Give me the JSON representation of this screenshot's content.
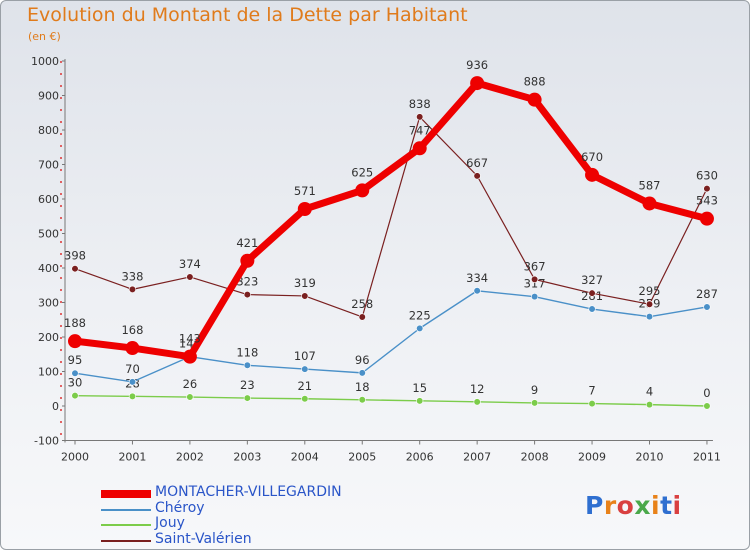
{
  "header": {
    "title": "Evolution du Montant de la Dette par Habitant",
    "subtitle": "(en €)"
  },
  "logo": {
    "text": "Proxiti",
    "letter_colors": [
      "#2f6fd0",
      "#e8821a",
      "#d94040",
      "#4aa84a",
      "#e8821a",
      "#2f6fd0",
      "#d94040"
    ]
  },
  "chart_data": {
    "type": "line",
    "title": "Evolution du Montant de la Dette par Habitant",
    "subtitle": "(en €)",
    "x": [
      "2000",
      "2001",
      "2002",
      "2003",
      "2004",
      "2005",
      "2006",
      "2007",
      "2008",
      "2009",
      "2010",
      "2011"
    ],
    "ylim": [
      -100,
      1000
    ],
    "yticks": [
      -100,
      0,
      100,
      200,
      300,
      400,
      500,
      600,
      700,
      800,
      900,
      1000
    ],
    "grid": false,
    "legend": "bottom-left",
    "series": [
      {
        "name": "MONTACHER-VILLEGARDIN",
        "color": "#ee0000",
        "values": [
          188,
          168,
          143,
          421,
          571,
          625,
          747,
          936,
          888,
          670,
          587,
          543
        ]
      },
      {
        "name": "Chéroy",
        "color": "#4a90c8",
        "values": [
          95,
          70,
          143,
          118,
          107,
          96,
          225,
          334,
          317,
          281,
          259,
          287
        ]
      },
      {
        "name": "Jouy",
        "color": "#7ccc4a",
        "values": [
          30,
          28,
          26,
          23,
          21,
          18,
          15,
          12,
          9,
          7,
          4,
          0
        ]
      },
      {
        "name": "Saint-Valérien",
        "color": "#7a2020",
        "values": [
          398,
          338,
          374,
          323,
          319,
          258,
          838,
          667,
          367,
          327,
          295,
          630
        ]
      }
    ],
    "data_labels": [
      [
        "188",
        "168",
        "143",
        "421",
        "571",
        "625",
        "747",
        "936",
        "888",
        "670",
        "587",
        "543"
      ],
      [
        "95",
        "70",
        "143",
        "118",
        "107",
        "96",
        "225",
        "334",
        "317",
        "281",
        "259",
        "287"
      ],
      [
        "30",
        "28",
        "26",
        "23",
        "21",
        "18",
        "15",
        "12",
        "9",
        "7",
        "4",
        "0"
      ],
      [
        "398",
        "338",
        "374",
        "323",
        "319",
        "258",
        "838",
        "667",
        "367",
        "327",
        "295",
        "630"
      ]
    ]
  }
}
